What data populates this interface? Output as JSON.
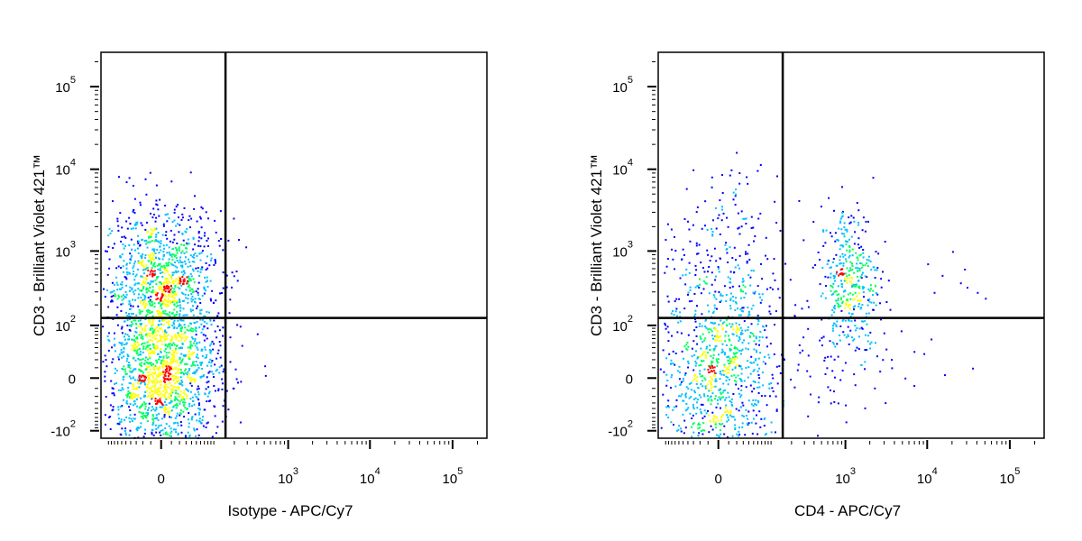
{
  "chart_data": [
    {
      "type": "scatter",
      "xlabel": "Isotype - APC/Cy7",
      "ylabel": "CD3 - Brilliant Violet 421™",
      "scale": "biexponential",
      "x_ticks": [
        {
          "value": 0,
          "base": "0",
          "exp": ""
        },
        {
          "value": 1000,
          "base": "10",
          "exp": "3"
        },
        {
          "value": 10000,
          "base": "10",
          "exp": "4"
        },
        {
          "value": 100000,
          "base": "10",
          "exp": "5"
        }
      ],
      "y_ticks": [
        {
          "value": -100,
          "base": "-10",
          "exp": "2"
        },
        {
          "value": 0,
          "base": "0",
          "exp": ""
        },
        {
          "value": 100,
          "base": "10",
          "exp": "2"
        },
        {
          "value": 1000,
          "base": "10",
          "exp": "3"
        },
        {
          "value": 10000,
          "base": "10",
          "exp": "4"
        },
        {
          "value": 100000,
          "base": "10",
          "exp": "5"
        }
      ],
      "gate": {
        "x": 150,
        "y": 130
      },
      "clusters": [
        {
          "x": 0,
          "y": 400,
          "count": 1100,
          "density": "high",
          "spread_x": 0.35,
          "spread_y": 0.45
        },
        {
          "x": 0,
          "y": 0,
          "count": 1300,
          "density": "very high",
          "spread_x": 0.35,
          "spread_y": 0.45
        }
      ],
      "quadrant_population": {
        "upper_left": "dense",
        "lower_left": "dense",
        "upper_right": "empty",
        "lower_right": "empty"
      },
      "colormap": [
        "#0000ff",
        "#00c0ff",
        "#00ff60",
        "#ffff00",
        "#ff0000"
      ]
    },
    {
      "type": "scatter",
      "xlabel": "CD4 - APC/Cy7",
      "ylabel": "CD3 - Brilliant Violet 421™",
      "scale": "biexponential",
      "x_ticks": [
        {
          "value": 0,
          "base": "0",
          "exp": ""
        },
        {
          "value": 1000,
          "base": "10",
          "exp": "3"
        },
        {
          "value": 10000,
          "base": "10",
          "exp": "4"
        },
        {
          "value": 100000,
          "base": "10",
          "exp": "5"
        }
      ],
      "y_ticks": [
        {
          "value": -100,
          "base": "-10",
          "exp": "2"
        },
        {
          "value": 0,
          "base": "0",
          "exp": ""
        },
        {
          "value": 100,
          "base": "10",
          "exp": "2"
        },
        {
          "value": 1000,
          "base": "10",
          "exp": "3"
        },
        {
          "value": 10000,
          "base": "10",
          "exp": "4"
        },
        {
          "value": 100000,
          "base": "10",
          "exp": "5"
        }
      ],
      "gate": {
        "x": 150,
        "y": 130
      },
      "clusters": [
        {
          "x": 0,
          "y": 0,
          "count": 700,
          "density": "high",
          "spread_x": 0.35,
          "spread_y": 0.5
        },
        {
          "x": 0,
          "y": 300,
          "count": 350,
          "density": "low",
          "spread_x": 0.35,
          "spread_y": 0.7
        },
        {
          "x": 1100,
          "y": 450,
          "count": 380,
          "density": "medium",
          "spread_x": 0.18,
          "spread_y": 0.45
        },
        {
          "x": 600,
          "y": 30,
          "count": 90,
          "density": "low",
          "spread_x": 0.5,
          "spread_y": 0.6
        }
      ],
      "scattered_points": [
        [
          20000,
          1000
        ],
        [
          15000,
          500
        ],
        [
          12000,
          300
        ],
        [
          25000,
          400
        ],
        [
          40000,
          300
        ],
        [
          30000,
          350
        ],
        [
          50000,
          250
        ],
        [
          10000,
          700
        ],
        [
          28000,
          600
        ],
        [
          9000,
          30
        ],
        [
          11000,
          60
        ],
        [
          35000,
          10
        ]
      ],
      "quadrant_population": {
        "upper_left": "sparse",
        "lower_left": "dense",
        "upper_right": "cluster near 10^3",
        "lower_right": "sparse"
      },
      "colormap": [
        "#0000ff",
        "#00c0ff",
        "#00ff60",
        "#ffff00",
        "#ff0000"
      ]
    }
  ]
}
